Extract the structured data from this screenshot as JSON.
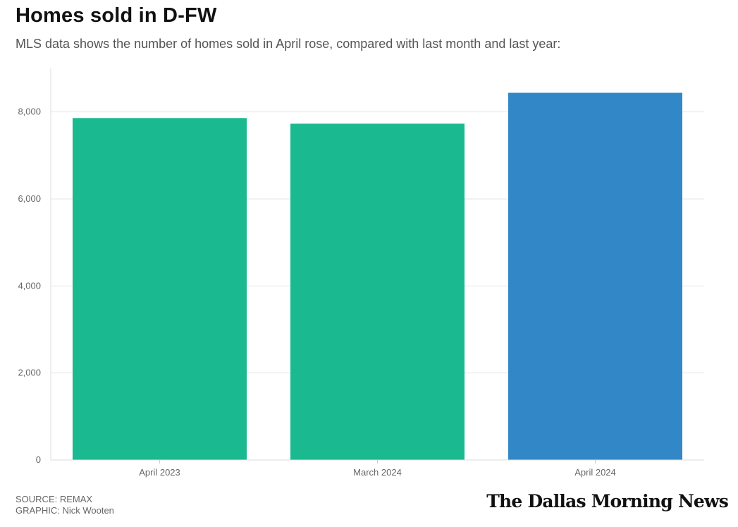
{
  "header": {
    "title": "Homes sold in D-FW",
    "subtitle": "MLS data shows the number of homes sold in April rose, compared with last month and last year:"
  },
  "footer": {
    "source": "SOURCE: REMAX",
    "graphic": "GRAPHIC: Nick Wooten",
    "logo_text": "The Dallas Morning News"
  },
  "colors": {
    "bar_default": "#1ab990",
    "bar_highlight": "#3288c7",
    "gridline": "#e6e6e6"
  },
  "chart_data": {
    "type": "bar",
    "title": "Homes sold in D-FW",
    "subtitle": "MLS data shows the number of homes sold in April rose, compared with last month and last year:",
    "categories": [
      "April 2023",
      "March 2024",
      "April 2024"
    ],
    "values": [
      7860,
      7730,
      8440
    ],
    "highlight_index": 2,
    "yticks": [
      0,
      2000,
      4000,
      6000,
      8000
    ],
    "ytick_labels": [
      "0",
      "2,000",
      "4,000",
      "6,000",
      "8,000"
    ],
    "ylim": [
      0,
      9000
    ],
    "xlabel": "",
    "ylabel": "",
    "grid": true,
    "legend": "none"
  }
}
